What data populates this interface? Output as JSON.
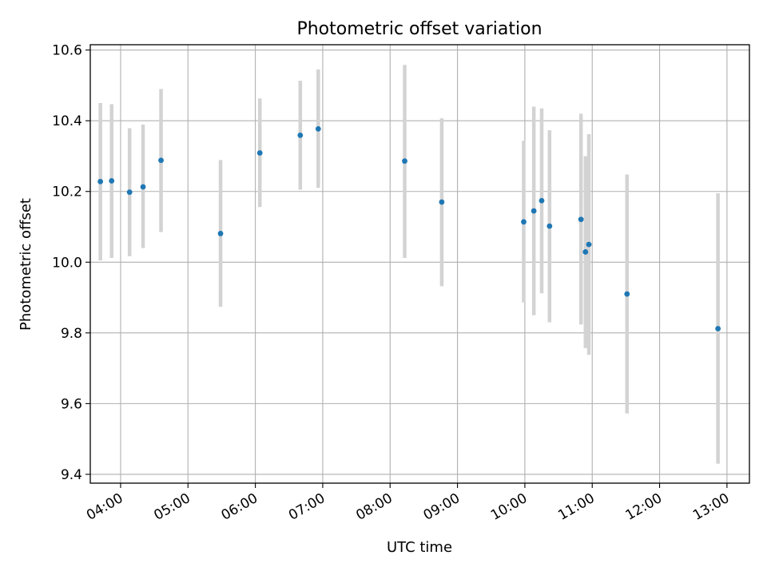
{
  "chart_data": {
    "type": "scatter",
    "title": "Photometric offset variation",
    "xlabel": "UTC time",
    "ylabel": "Photometric offset",
    "x_ticks": [
      "04:00",
      "05:00",
      "06:00",
      "07:00",
      "08:00",
      "09:00",
      "10:00",
      "11:00",
      "12:00",
      "13:00"
    ],
    "y_ticks": [
      "9.4",
      "9.6",
      "9.8",
      "10.0",
      "10.2",
      "10.4",
      "10.6"
    ],
    "xlim": [
      "03:33",
      "13:20"
    ],
    "ylim": [
      9.375,
      10.615
    ],
    "grid": true,
    "colors": {
      "point": "#1f77b4",
      "errorbar": "#d3d3d3",
      "grid": "#b0b0b0"
    },
    "points": [
      {
        "time": "03:42",
        "value": 10.228,
        "err_low": 10.005,
        "err_high": 10.45
      },
      {
        "time": "03:52",
        "value": 10.23,
        "err_low": 10.012,
        "err_high": 10.447
      },
      {
        "time": "04:08",
        "value": 10.198,
        "err_low": 10.017,
        "err_high": 10.379
      },
      {
        "time": "04:20",
        "value": 10.213,
        "err_low": 10.04,
        "err_high": 10.389
      },
      {
        "time": "04:36",
        "value": 10.288,
        "err_low": 10.085,
        "err_high": 10.49
      },
      {
        "time": "05:29",
        "value": 10.081,
        "err_low": 9.874,
        "err_high": 10.289
      },
      {
        "time": "06:04",
        "value": 10.309,
        "err_low": 10.156,
        "err_high": 10.463
      },
      {
        "time": "06:40",
        "value": 10.359,
        "err_low": 10.205,
        "err_high": 10.513
      },
      {
        "time": "06:56",
        "value": 10.377,
        "err_low": 10.21,
        "err_high": 10.545
      },
      {
        "time": "08:13",
        "value": 10.286,
        "err_low": 10.012,
        "err_high": 10.558
      },
      {
        "time": "08:46",
        "value": 10.17,
        "err_low": 9.932,
        "err_high": 10.407
      },
      {
        "time": "09:59",
        "value": 10.114,
        "err_low": 9.886,
        "err_high": 10.343
      },
      {
        "time": "10:08",
        "value": 10.145,
        "err_low": 9.85,
        "err_high": 10.44
      },
      {
        "time": "10:15",
        "value": 10.174,
        "err_low": 9.912,
        "err_high": 10.435
      },
      {
        "time": "10:22",
        "value": 10.102,
        "err_low": 9.83,
        "err_high": 10.373
      },
      {
        "time": "10:50",
        "value": 10.121,
        "err_low": 9.824,
        "err_high": 10.42
      },
      {
        "time": "10:54",
        "value": 10.029,
        "err_low": 9.757,
        "err_high": 10.3
      },
      {
        "time": "10:57",
        "value": 10.05,
        "err_low": 9.738,
        "err_high": 10.362
      },
      {
        "time": "11:31",
        "value": 9.91,
        "err_low": 9.572,
        "err_high": 10.248
      },
      {
        "time": "12:52",
        "value": 9.812,
        "err_low": 9.43,
        "err_high": 10.195
      }
    ]
  }
}
